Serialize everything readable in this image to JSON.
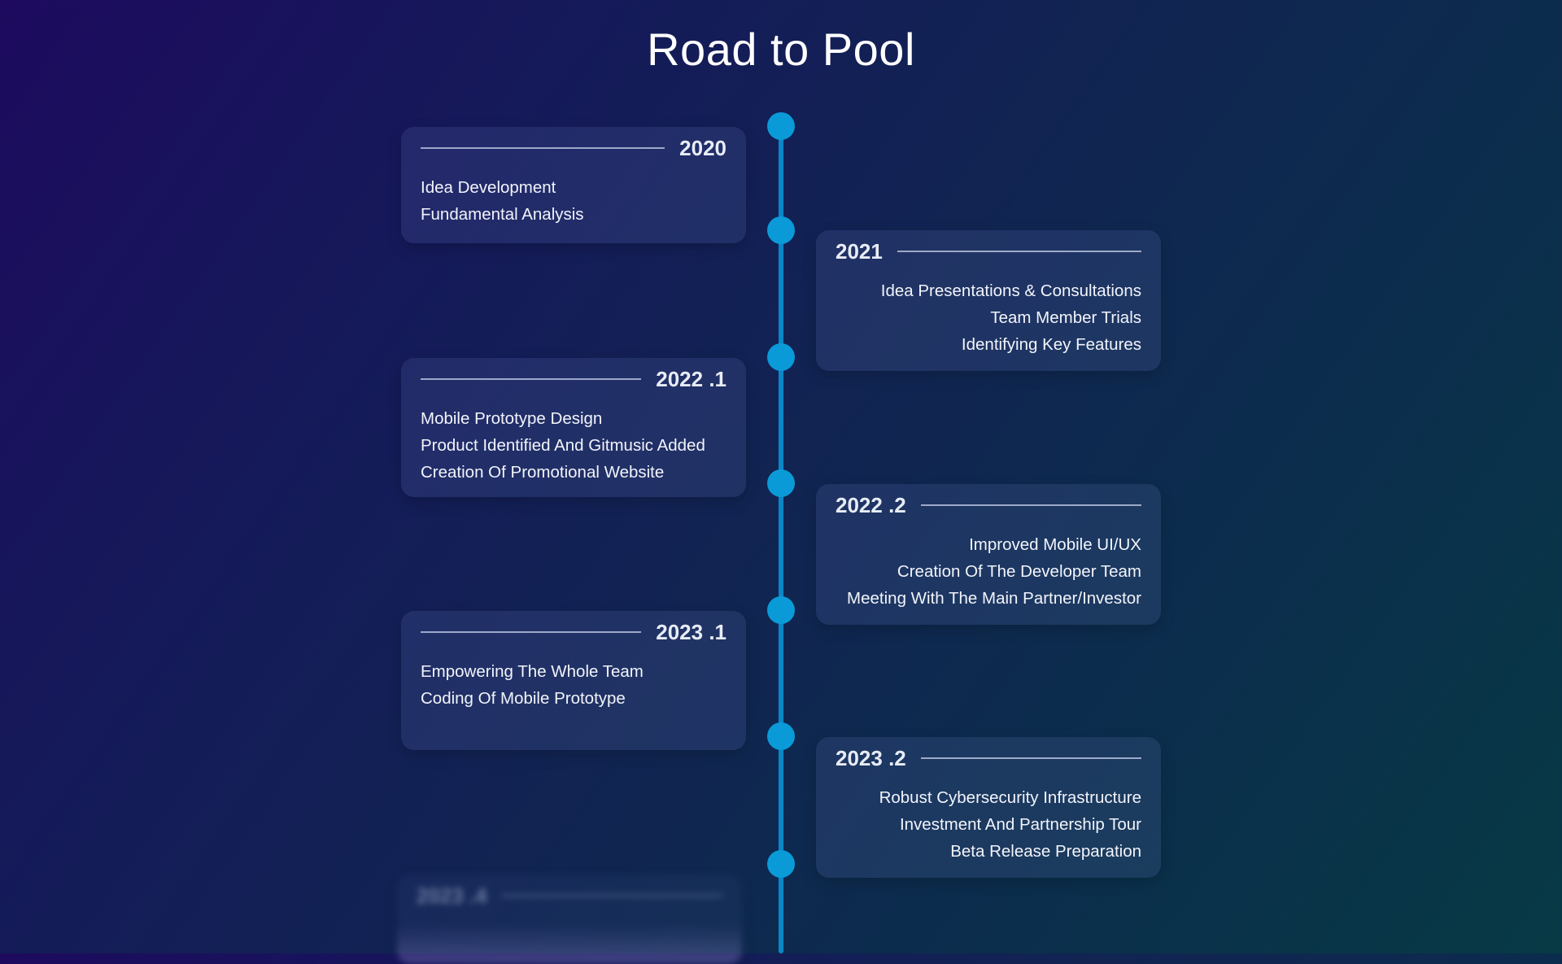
{
  "page": {
    "title": "Road to Pool"
  },
  "roadmap": [
    {
      "year": "2020",
      "side": "left",
      "items": [
        "Idea Development",
        "Fundamental Analysis"
      ]
    },
    {
      "year": "2021",
      "side": "right",
      "items": [
        "Idea Presentations & Consultations",
        "Team Member Trials",
        "Identifying Key Features"
      ]
    },
    {
      "year": "2022 .1",
      "side": "left",
      "items": [
        "Mobile Prototype Design",
        "Product Identified And Gitmusic Added",
        "Creation Of Promotional Website"
      ]
    },
    {
      "year": "2022 .2",
      "side": "right",
      "items": [
        "Improved Mobile UI/UX",
        "Creation Of The Developer Team",
        "Meeting With The Main Partner/Investor"
      ]
    },
    {
      "year": "2023 .1",
      "side": "left",
      "items": [
        "Empowering The Whole Team",
        "Coding Of Mobile Prototype"
      ]
    },
    {
      "year": "2023 .2",
      "side": "right",
      "items": [
        "Robust Cybersecurity Infrastructure",
        "Investment And Partnership Tour",
        "Beta Release Preparation"
      ]
    },
    {
      "year": "2023 .4",
      "side": "left",
      "items": []
    }
  ],
  "colors": {
    "timeline": "#0a87c6",
    "dot": "#0a9ad8",
    "background_start": "#1d0a5e",
    "background_end": "#073a45"
  }
}
